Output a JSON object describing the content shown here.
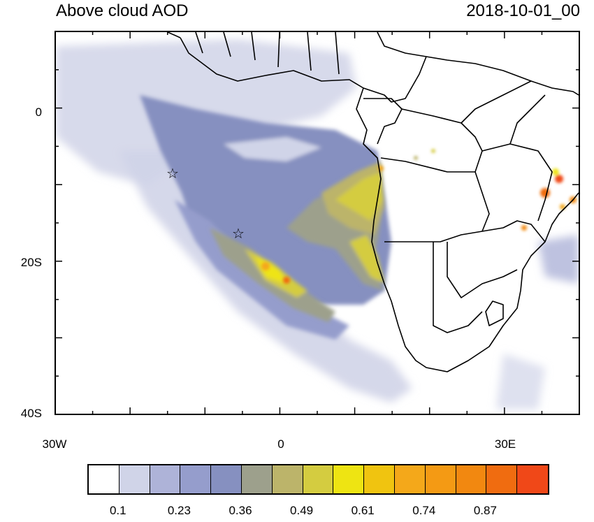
{
  "title": "Above cloud AOD",
  "timestamp": "2018-10-01_00",
  "map": {
    "x_axis": {
      "ticks": [
        {
          "label": "30W",
          "lon": -30
        },
        {
          "label": "0",
          "lon": 0
        },
        {
          "label": "30E",
          "lon": 30
        }
      ],
      "range": [
        -30,
        40
      ]
    },
    "y_axis": {
      "ticks": [
        {
          "label": "0",
          "lat": 0
        },
        {
          "label": "20S",
          "lat": -20
        },
        {
          "label": "40S",
          "lat": -40
        }
      ],
      "range": [
        -40,
        10
      ]
    },
    "markers": [
      {
        "name": "star",
        "lon": -14.5,
        "lat": -8
      },
      {
        "name": "star",
        "lon": -5.7,
        "lat": -16
      }
    ]
  },
  "colorbar": {
    "colors": [
      "#ffffff",
      "#d0d4e8",
      "#aeb3d8",
      "#959dcc",
      "#8690c0",
      "#9da08c",
      "#bcb46a",
      "#d4cc40",
      "#eee412",
      "#f0c410",
      "#f4a81a",
      "#f49a14",
      "#f28810",
      "#f06c10",
      "#f04818"
    ],
    "labels": [
      "0.1",
      "0.23",
      "0.36",
      "0.49",
      "0.61",
      "0.74",
      "0.87"
    ]
  }
}
